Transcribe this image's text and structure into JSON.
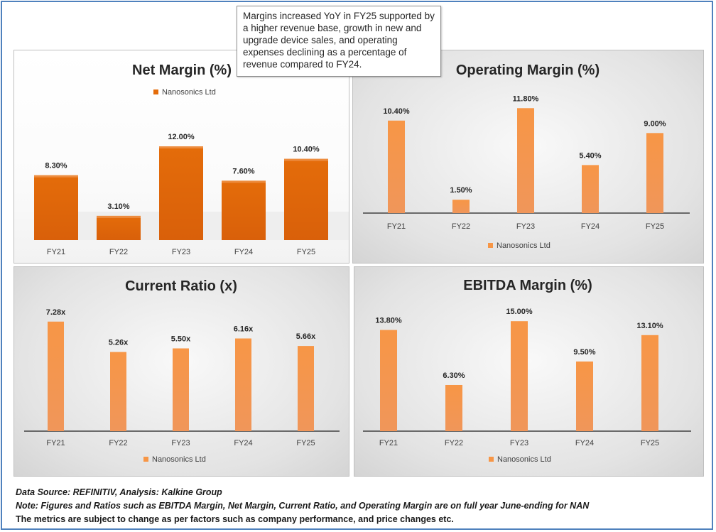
{
  "callout": {
    "text": "Margins increased YoY in FY25 supported by a higher revenue base, growth in new and upgrade device sales, and operating expenses declining as a percentage of revenue compared to FY24."
  },
  "footer": {
    "source": "Data Source: REFINITIV, Analysis: Kalkine Group",
    "note": "Note: Figures and Ratios such as EBITDA Margin, Net Margin, Current Ratio, and Operating Margin are on full year June-ending for NAN",
    "disclaimer": "The metrics are subject to change as per factors such as company performance, and price changes etc."
  },
  "colors": {
    "bar_dark": "#e46c0a",
    "bar_light": "#f79646",
    "bar_light_alt": "#f0965a",
    "axis": "#404040"
  },
  "chart_data": [
    {
      "id": "net",
      "type": "bar",
      "title": "Net Margin (%)",
      "categories": [
        "FY21",
        "FY22",
        "FY23",
        "FY24",
        "FY25"
      ],
      "series": [
        {
          "name": "Nanosonics Ltd",
          "values": [
            8.3,
            3.1,
            12.0,
            7.6,
            10.4
          ]
        }
      ],
      "value_labels": [
        "8.30%",
        "3.10%",
        "12.00%",
        "7.60%",
        "10.40%"
      ],
      "ylim": [
        0,
        17
      ],
      "legend": "top",
      "style": "3d"
    },
    {
      "id": "op",
      "type": "bar",
      "title": "Operating Margin (%)",
      "categories": [
        "FY21",
        "FY22",
        "FY23",
        "FY24",
        "FY25"
      ],
      "series": [
        {
          "name": "Nanosonics Ltd",
          "values": [
            10.4,
            1.5,
            11.8,
            5.4,
            9.0
          ]
        }
      ],
      "value_labels": [
        "10.40%",
        "1.50%",
        "11.80%",
        "5.40%",
        "9.00%"
      ],
      "ylim": [
        0,
        12.7
      ],
      "legend": "bottom",
      "style": "flat"
    },
    {
      "id": "cr",
      "type": "bar",
      "title": "Current Ratio (x)",
      "categories": [
        "FY21",
        "FY22",
        "FY23",
        "FY24",
        "FY25"
      ],
      "series": [
        {
          "name": "Nanosonics Ltd",
          "values": [
            7.28,
            5.26,
            5.5,
            6.16,
            5.66
          ]
        }
      ],
      "value_labels": [
        "7.28x",
        "5.26x",
        "5.50x",
        "6.16x",
        "5.66x"
      ],
      "ylim": [
        0,
        7.6
      ],
      "legend": "bottom",
      "style": "flat"
    },
    {
      "id": "eb",
      "type": "bar",
      "title": "EBITDA Margin (%)",
      "categories": [
        "FY21",
        "FY22",
        "FY23",
        "FY24",
        "FY25"
      ],
      "series": [
        {
          "name": "Nanosonics Ltd",
          "values": [
            13.8,
            6.3,
            15.0,
            9.5,
            13.1
          ]
        }
      ],
      "value_labels": [
        "13.80%",
        "6.30%",
        "15.00%",
        "9.50%",
        "13.10%"
      ],
      "ylim": [
        0,
        15.6
      ],
      "legend": "bottom",
      "style": "flat"
    }
  ]
}
